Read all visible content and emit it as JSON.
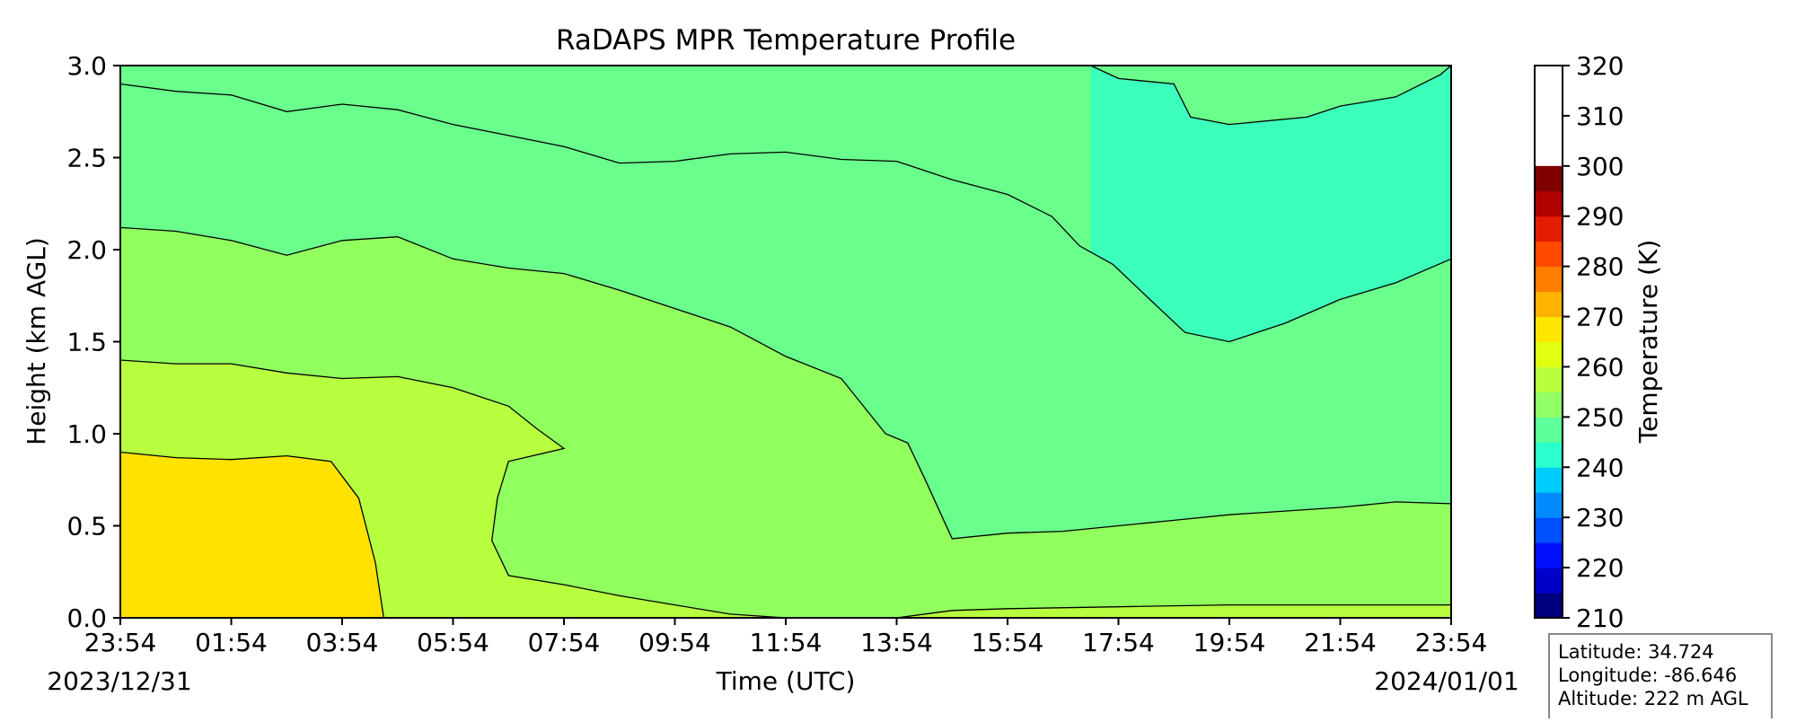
{
  "chart_data": {
    "type": "contour",
    "title": "RaDAPS MPR Temperature Profile",
    "xlabel": "Time (UTC)",
    "ylabel": "Height (km AGL)",
    "x_tick_labels": [
      "23:54",
      "01:54",
      "03:54",
      "05:54",
      "07:54",
      "09:54",
      "11:54",
      "13:54",
      "15:54",
      "17:54",
      "19:54",
      "21:54",
      "23:54"
    ],
    "x_ticks_hours": [
      0,
      2,
      4,
      6,
      8,
      10,
      12,
      14,
      16,
      18,
      20,
      22,
      24
    ],
    "xlim_hours": [
      0,
      24
    ],
    "start_date": "2023/12/31",
    "end_date": "2024/01/01",
    "y_ticks": [
      0.0,
      0.5,
      1.0,
      1.5,
      2.0,
      2.5,
      3.0
    ],
    "y_tick_labels": [
      "0.0",
      "0.5",
      "1.0",
      "1.5",
      "2.0",
      "2.5",
      "3.0"
    ],
    "ylim": [
      0,
      3
    ],
    "colorbar": {
      "label": "Temperature (K)",
      "min": 210,
      "max": 320,
      "step": 5,
      "ticks": [
        210,
        220,
        230,
        240,
        250,
        260,
        270,
        280,
        290,
        300,
        310,
        320
      ],
      "colors": [
        "#00007f",
        "#0000c8",
        "#0010ff",
        "#0050ff",
        "#008cff",
        "#00ccff",
        "#2affcd",
        "#5cff9a",
        "#91ff66",
        "#b9ff3c",
        "#e1ff12",
        "#ffe600",
        "#ffb300",
        "#ff7e00",
        "#ff4a00",
        "#e41d00",
        "#b10000",
        "#7f0000"
      ]
    },
    "contour_levels": [
      {
        "value": 255,
        "color": "#3cffbc",
        "boundary": [
          [
            17.5,
            3.0
          ],
          [
            18.0,
            2.93
          ],
          [
            19.0,
            2.9
          ],
          [
            19.3,
            2.72
          ],
          [
            20.0,
            2.68
          ],
          [
            21.4,
            2.72
          ],
          [
            22.0,
            2.78
          ],
          [
            23.0,
            2.83
          ],
          [
            23.8,
            2.95
          ],
          [
            24.0,
            3.0
          ]
        ]
      },
      {
        "value": 260,
        "color": "#6aff8c",
        "boundary": [
          [
            0,
            2.9
          ],
          [
            1.0,
            2.86
          ],
          [
            2.0,
            2.84
          ],
          [
            3.0,
            2.75
          ],
          [
            4.0,
            2.79
          ],
          [
            5.0,
            2.76
          ],
          [
            6.0,
            2.68
          ],
          [
            7.0,
            2.62
          ],
          [
            8.0,
            2.56
          ],
          [
            9.0,
            2.47
          ],
          [
            10.0,
            2.48
          ],
          [
            11.0,
            2.52
          ],
          [
            12.0,
            2.53
          ],
          [
            13.0,
            2.49
          ],
          [
            14.0,
            2.48
          ],
          [
            15.0,
            2.38
          ],
          [
            16.0,
            2.3
          ],
          [
            16.8,
            2.18
          ],
          [
            17.3,
            2.02
          ],
          [
            17.9,
            1.92
          ],
          [
            18.6,
            1.72
          ],
          [
            19.2,
            1.55
          ],
          [
            20.0,
            1.5
          ],
          [
            21.0,
            1.6
          ],
          [
            22.0,
            1.73
          ],
          [
            23.0,
            1.82
          ],
          [
            24.0,
            1.95
          ]
        ]
      },
      {
        "value": 265,
        "color": "#91ff5e",
        "boundary": [
          [
            0,
            2.12
          ],
          [
            1.0,
            2.1
          ],
          [
            2.0,
            2.05
          ],
          [
            3.0,
            1.97
          ],
          [
            4.0,
            2.05
          ],
          [
            5.0,
            2.07
          ],
          [
            6.0,
            1.95
          ],
          [
            7.0,
            1.9
          ],
          [
            8.0,
            1.87
          ],
          [
            9.0,
            1.78
          ],
          [
            10.0,
            1.68
          ],
          [
            11.0,
            1.58
          ],
          [
            12.0,
            1.42
          ],
          [
            13.0,
            1.3
          ],
          [
            13.8,
            1.0
          ],
          [
            14.2,
            0.95
          ],
          [
            14.5,
            0.76
          ],
          [
            15.0,
            0.43
          ],
          [
            16.0,
            0.46
          ],
          [
            17.0,
            0.47
          ],
          [
            18.0,
            0.5
          ],
          [
            19.0,
            0.53
          ],
          [
            20.0,
            0.56
          ],
          [
            21.0,
            0.58
          ],
          [
            22.0,
            0.6
          ],
          [
            23.0,
            0.63
          ],
          [
            24.0,
            0.62
          ]
        ]
      },
      {
        "value": 270,
        "color": "#b7ff3f",
        "boundary": [
          [
            0,
            1.4
          ],
          [
            1.0,
            1.38
          ],
          [
            2.0,
            1.38
          ],
          [
            3.0,
            1.33
          ],
          [
            4.0,
            1.3
          ],
          [
            5.0,
            1.31
          ],
          [
            6.0,
            1.25
          ],
          [
            7.0,
            1.15
          ],
          [
            7.5,
            1.03
          ],
          [
            8.0,
            0.92
          ],
          [
            7.0,
            0.85
          ],
          [
            6.8,
            0.65
          ],
          [
            6.7,
            0.42
          ],
          [
            7.0,
            0.23
          ],
          [
            8.0,
            0.18
          ],
          [
            9.0,
            0.12
          ],
          [
            10.0,
            0.07
          ],
          [
            11.0,
            0.02
          ],
          [
            12.0,
            0.0
          ],
          [
            14.0,
            0.0
          ],
          [
            15.0,
            0.04
          ],
          [
            16.0,
            0.05
          ],
          [
            18.0,
            0.06
          ],
          [
            20.0,
            0.07
          ],
          [
            22.0,
            0.07
          ],
          [
            24.0,
            0.07
          ]
        ]
      },
      {
        "value": 275,
        "color": "#dcff1a",
        "boundary": [
          [
            0,
            0.9
          ],
          [
            1.0,
            0.87
          ],
          [
            2.0,
            0.86
          ],
          [
            3.0,
            0.88
          ],
          [
            3.8,
            0.85
          ],
          [
            4.3,
            0.65
          ],
          [
            4.6,
            0.3
          ],
          [
            4.75,
            0.0
          ]
        ]
      },
      {
        "value": 280,
        "color": "#ffe200",
        "boundary": []
      }
    ],
    "annotation": {
      "latitude": "Latitude: 34.724",
      "longitude": "Longitude: -86.646",
      "altitude": "Altitude: 222 m AGL"
    }
  }
}
